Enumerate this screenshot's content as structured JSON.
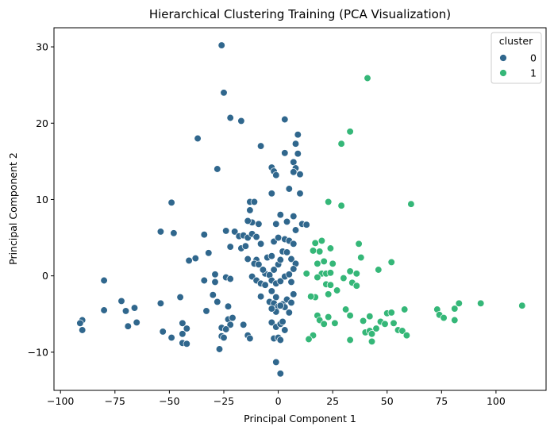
{
  "chart_data": {
    "type": "scatter",
    "title": "Hierarchical Clustering Training (PCA Visualization)",
    "xlabel": "Principal Component 1",
    "ylabel": "Principal Component 2",
    "xlim": [
      -103,
      123
    ],
    "ylim": [
      -15,
      32.5
    ],
    "xticks": [
      -100,
      -75,
      -50,
      -25,
      0,
      25,
      50,
      75,
      100
    ],
    "yticks": [
      -10,
      0,
      10,
      20,
      30
    ],
    "grid": false,
    "legend": {
      "title": "cluster",
      "placement": "top-right",
      "entries": [
        "0",
        "1"
      ]
    },
    "colors": {
      "0": "#30678d",
      "1": "#35b778"
    },
    "series": [
      {
        "name": "0",
        "points": [
          [
            -26,
            30.2
          ],
          [
            -25,
            24
          ],
          [
            -22,
            20.7
          ],
          [
            -17,
            20.3
          ],
          [
            -37,
            18
          ],
          [
            -8,
            17
          ],
          [
            3,
            20.5
          ],
          [
            9,
            18.5
          ],
          [
            8,
            17.3
          ],
          [
            3,
            16.1
          ],
          [
            9,
            16
          ],
          [
            7,
            14.9
          ],
          [
            8,
            14.1
          ],
          [
            -28,
            14
          ],
          [
            -3,
            14.2
          ],
          [
            -2,
            13.7
          ],
          [
            -1,
            13.2
          ],
          [
            7,
            13.6
          ],
          [
            10,
            13.3
          ],
          [
            -49,
            9.6
          ],
          [
            -3,
            10.8
          ],
          [
            5,
            11.4
          ],
          [
            10,
            10.8
          ],
          [
            -13,
            9.7
          ],
          [
            -11,
            9.7
          ],
          [
            -13,
            8.6
          ],
          [
            1,
            8
          ],
          [
            -12,
            7
          ],
          [
            -14,
            7.2
          ],
          [
            -1,
            6.8
          ],
          [
            4,
            7.1
          ],
          [
            7,
            7.8
          ],
          [
            -9,
            6.8
          ],
          [
            8,
            6
          ],
          [
            11,
            6.8
          ],
          [
            13,
            6.7
          ],
          [
            -54,
            5.8
          ],
          [
            -48,
            5.6
          ],
          [
            -24,
            5.9
          ],
          [
            -20,
            5.8
          ],
          [
            -18,
            5.2
          ],
          [
            -16,
            5.3
          ],
          [
            -14,
            5
          ],
          [
            -12,
            5.5
          ],
          [
            -10,
            5.1
          ],
          [
            -8,
            4.2
          ],
          [
            -2,
            4.5
          ],
          [
            0,
            5
          ],
          [
            3,
            4.8
          ],
          [
            5,
            4.6
          ],
          [
            7,
            4.2
          ],
          [
            -34,
            5.4
          ],
          [
            -22,
            3.8
          ],
          [
            -17,
            3.6
          ],
          [
            -15,
            3.9
          ],
          [
            -10,
            2.1
          ],
          [
            -38,
            2.3
          ],
          [
            -41,
            2
          ],
          [
            -32,
            3
          ],
          [
            -14,
            2.2
          ],
          [
            -11,
            1.6
          ],
          [
            -9,
            1.5
          ],
          [
            -5,
            2.4
          ],
          [
            -3,
            2.6
          ],
          [
            -2,
            0.8
          ],
          [
            0,
            1.5
          ],
          [
            1,
            2.1
          ],
          [
            2,
            3.2
          ],
          [
            4,
            3.1
          ],
          [
            6,
            2.2
          ],
          [
            8,
            1.6
          ],
          [
            -6,
            0.3
          ],
          [
            -4,
            0.1
          ],
          [
            -7,
            0.8
          ],
          [
            -3,
            -0.6
          ],
          [
            -29,
            0.2
          ],
          [
            -34,
            -0.6
          ],
          [
            -29,
            -0.8
          ],
          [
            -24,
            -0.2
          ],
          [
            -22,
            -0.4
          ],
          [
            -12,
            -0.1
          ],
          [
            -10,
            -0.6
          ],
          [
            -8,
            -1
          ],
          [
            -1,
            -1
          ],
          [
            1,
            -0.7
          ],
          [
            3,
            -0.1
          ],
          [
            5,
            0.2
          ],
          [
            7,
            0.9
          ],
          [
            6,
            -0.8
          ],
          [
            -8,
            -2.7
          ],
          [
            -6,
            -1.2
          ],
          [
            -3,
            -2
          ],
          [
            -1,
            -2.8
          ],
          [
            -80,
            -0.6
          ],
          [
            -4,
            -3.4
          ],
          [
            -2,
            -3.6
          ],
          [
            0,
            -4
          ],
          [
            2,
            -3.7
          ],
          [
            4,
            -3.1
          ],
          [
            6,
            -3.5
          ],
          [
            5,
            -4.8
          ],
          [
            3,
            -4.1
          ],
          [
            1,
            -3.9
          ],
          [
            -1,
            -4.7
          ],
          [
            -3,
            -4.3
          ],
          [
            7,
            -2.4
          ],
          [
            -72,
            -3.3
          ],
          [
            -66,
            -4.2
          ],
          [
            -70,
            -4.6
          ],
          [
            -80,
            -4.5
          ],
          [
            -90,
            -5.8
          ],
          [
            -91,
            -6.2
          ],
          [
            -90,
            -7.1
          ],
          [
            -69,
            -6.6
          ],
          [
            -65,
            -6.1
          ],
          [
            -54,
            -3.6
          ],
          [
            -45,
            -2.8
          ],
          [
            -33,
            -4.6
          ],
          [
            -30,
            -2.5
          ],
          [
            -28,
            -3.4
          ],
          [
            -23,
            -4
          ],
          [
            -53,
            -7.3
          ],
          [
            -49,
            -8.1
          ],
          [
            -44,
            -6.2
          ],
          [
            -42,
            -6.9
          ],
          [
            -44,
            -7.6
          ],
          [
            -44,
            -8.8
          ],
          [
            -42,
            -8.9
          ],
          [
            -26,
            -6.8
          ],
          [
            -23,
            -5.7
          ],
          [
            -21,
            -5.5
          ],
          [
            -22,
            -6.4
          ],
          [
            -24,
            -7
          ],
          [
            -26,
            -7.9
          ],
          [
            -25,
            -8.1
          ],
          [
            -27,
            -9.6
          ],
          [
            -16,
            -6.4
          ],
          [
            -14,
            -7.8
          ],
          [
            -13,
            -8.2
          ],
          [
            -3,
            -6.1
          ],
          [
            -1,
            -6.7
          ],
          [
            1,
            -6.3
          ],
          [
            3,
            -7.1
          ],
          [
            2,
            -6
          ],
          [
            -2,
            -8.2
          ],
          [
            0,
            -8.1
          ],
          [
            1,
            -8.4
          ],
          [
            -1,
            -11.3
          ],
          [
            1,
            -12.8
          ]
        ]
      },
      {
        "name": "1",
        "points": [
          [
            41,
            25.9
          ],
          [
            33,
            18.9
          ],
          [
            29,
            17.3
          ],
          [
            23,
            9.7
          ],
          [
            29,
            9.2
          ],
          [
            61,
            9.4
          ],
          [
            20,
            4.6
          ],
          [
            17,
            4.3
          ],
          [
            24,
            3.6
          ],
          [
            37,
            4.2
          ],
          [
            16,
            3.3
          ],
          [
            18,
            1.6
          ],
          [
            19,
            3.2
          ],
          [
            21,
            1.9
          ],
          [
            25,
            1.6
          ],
          [
            38,
            2.4
          ],
          [
            52,
            1.8
          ],
          [
            13,
            0.3
          ],
          [
            20,
            0.3
          ],
          [
            22,
            0.3
          ],
          [
            24,
            0.4
          ],
          [
            30,
            -0.3
          ],
          [
            33,
            0.6
          ],
          [
            36,
            0.3
          ],
          [
            46,
            0.8
          ],
          [
            34,
            -0.9
          ],
          [
            18,
            -0.2
          ],
          [
            22,
            -1.1
          ],
          [
            24,
            -1.2
          ],
          [
            27,
            -1.9
          ],
          [
            36,
            -1.3
          ],
          [
            17,
            -2.8
          ],
          [
            23,
            -2.4
          ],
          [
            15,
            -2.7
          ],
          [
            31,
            -4.4
          ],
          [
            33,
            -5.2
          ],
          [
            39,
            -5.9
          ],
          [
            42,
            -5.3
          ],
          [
            47,
            -6
          ],
          [
            50,
            -4.9
          ],
          [
            52,
            -4.8
          ],
          [
            58,
            -4.4
          ],
          [
            73,
            -4.4
          ],
          [
            74,
            -5.1
          ],
          [
            76,
            -5.5
          ],
          [
            81,
            -4.3
          ],
          [
            83,
            -3.6
          ],
          [
            93,
            -3.6
          ],
          [
            112,
            -3.9
          ],
          [
            81,
            -5.8
          ],
          [
            18,
            -5.2
          ],
          [
            19,
            -5.8
          ],
          [
            23,
            -5.4
          ],
          [
            21,
            -6.3
          ],
          [
            26,
            -6.2
          ],
          [
            45,
            -6.9
          ],
          [
            49,
            -6.3
          ],
          [
            53,
            -6.2
          ],
          [
            55,
            -7.1
          ],
          [
            57,
            -7.2
          ],
          [
            59,
            -7.8
          ],
          [
            40,
            -7.4
          ],
          [
            42,
            -7.2
          ],
          [
            43,
            -7.6
          ],
          [
            16,
            -7.8
          ],
          [
            14,
            -8.3
          ],
          [
            33,
            -8.4
          ],
          [
            43,
            -8.6
          ]
        ]
      }
    ]
  }
}
